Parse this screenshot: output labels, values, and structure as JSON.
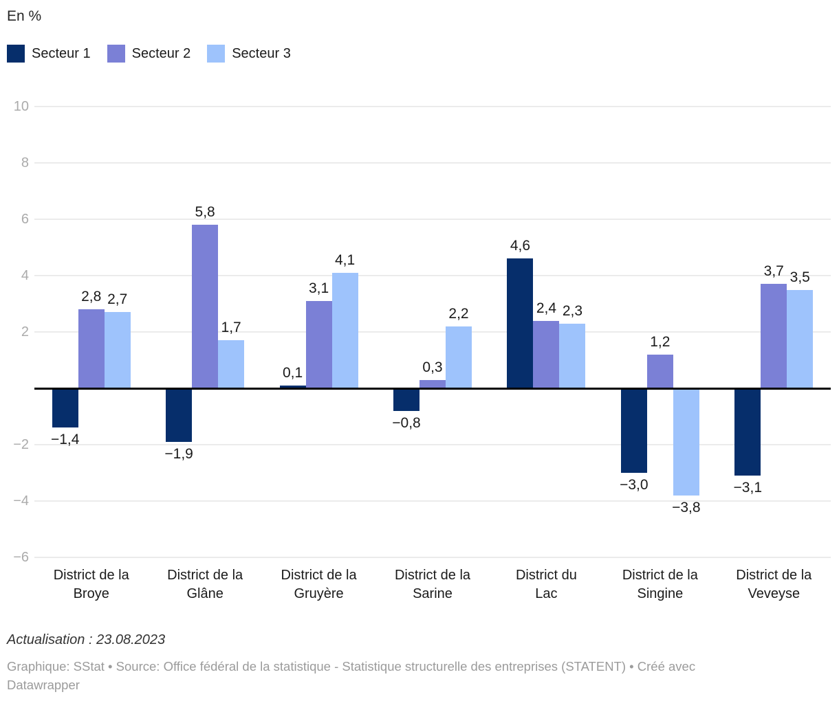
{
  "header": {
    "title": "En %"
  },
  "chart_data": {
    "type": "bar",
    "title": "En %",
    "unit": "percent",
    "categories": [
      "District de la Broye",
      "District de la Glâne",
      "District de la Gruyère",
      "District de la Sarine",
      "District du Lac",
      "District de la Singine",
      "District de la Veveyse"
    ],
    "category_label_lines": [
      [
        "District de la",
        "Broye"
      ],
      [
        "District de la",
        "Glâne"
      ],
      [
        "District de la",
        "Gruyère"
      ],
      [
        "District de la",
        "Sarine"
      ],
      [
        "District du",
        "Lac"
      ],
      [
        "District de la",
        "Singine"
      ],
      [
        "District de la",
        "Veveyse"
      ]
    ],
    "series": [
      {
        "name": "Secteur 1",
        "color": "#062e6b",
        "values": [
          -1.4,
          -1.9,
          0.1,
          -0.8,
          4.6,
          -3.0,
          -3.1
        ],
        "labels": [
          "−1,4",
          "−1,9",
          "0,1",
          "−0,8",
          "4,6",
          "−3,0",
          "−3,1"
        ]
      },
      {
        "name": "Secteur 2",
        "color": "#7b80d6",
        "values": [
          2.8,
          5.8,
          3.1,
          0.3,
          2.4,
          1.2,
          3.7
        ],
        "labels": [
          "2,8",
          "5,8",
          "3,1",
          "0,3",
          "2,4",
          "1,2",
          "3,7"
        ]
      },
      {
        "name": "Secteur 3",
        "color": "#9ec3fc",
        "values": [
          2.7,
          1.7,
          4.1,
          2.2,
          2.3,
          -3.8,
          3.5
        ],
        "labels": [
          "2,7",
          "1,7",
          "4,1",
          "2,2",
          "2,3",
          "−3,8",
          "3,5"
        ]
      }
    ],
    "y_axis": {
      "ticks": [
        {
          "value": 10,
          "label": "10"
        },
        {
          "value": 8,
          "label": "8"
        },
        {
          "value": 6,
          "label": "6"
        },
        {
          "value": 4,
          "label": "4"
        },
        {
          "value": 2,
          "label": "2"
        },
        {
          "value": -2,
          "label": "−2"
        },
        {
          "value": -4,
          "label": "−4"
        },
        {
          "value": -6,
          "label": "−6"
        }
      ],
      "range": [
        -6,
        10
      ]
    },
    "grid": true,
    "baseline": 0,
    "legend_position": "top-left"
  },
  "footer": {
    "update_note": "Actualisation : 23.08.2023",
    "source_lines": [
      "Graphique: SStat • Source: Office fédéral de la statistique - Statistique structurelle des entreprises (STATENT) • Créé avec",
      "Datawrapper"
    ]
  },
  "colors": {
    "grid": "#ebebeb",
    "zero_line": "#000000",
    "tick_label": "#ababab",
    "value_label": "#1a1a1a",
    "category_label": "#1a1a1a",
    "note": "#333333",
    "source": "#9b9b9b"
  }
}
